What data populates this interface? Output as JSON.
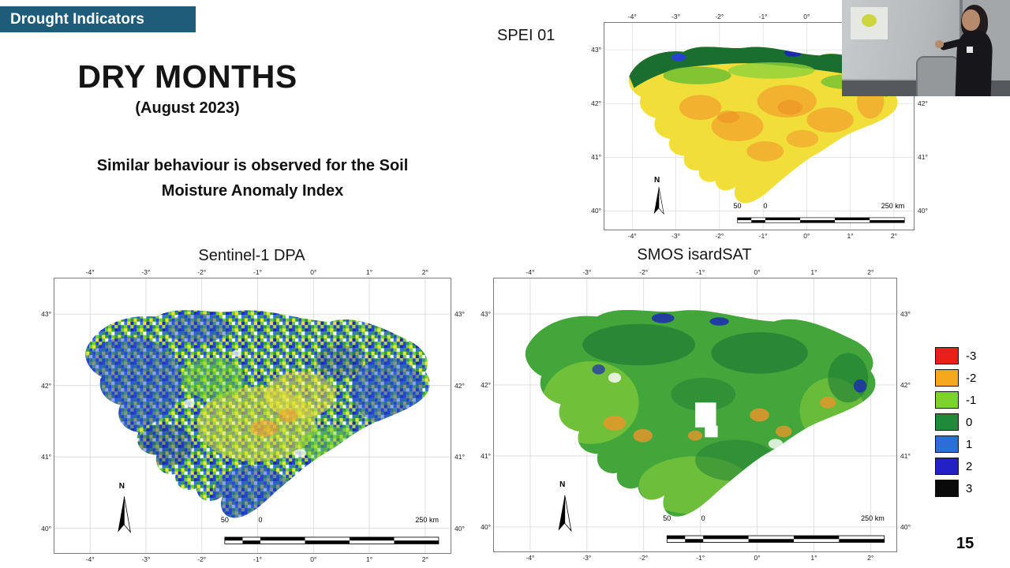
{
  "badge": {
    "label": "Drought Indicators"
  },
  "slide": {
    "title": "DRY MONTHS",
    "subtitle": "(August 2023)",
    "body_line1": "Similar behaviour is observed for the Soil",
    "body_line2": "Moisture Anomaly Index",
    "page_number": "15"
  },
  "maps": {
    "spei": {
      "label": "SPEI 01"
    },
    "sentinel": {
      "label": "Sentinel-1 DPA"
    },
    "smos": {
      "label": "SMOS isardSAT"
    }
  },
  "axes": {
    "x_ticks": [
      "-4°",
      "-3°",
      "-2°",
      "-1°",
      "0°",
      "1°",
      "2°"
    ],
    "y_ticks": [
      "43°",
      "42°",
      "41°",
      "40°"
    ]
  },
  "map_annotations": {
    "north_label": "N",
    "scale_left_label": "50",
    "scale_zero_label": "0",
    "scale_right_label": "250 km"
  },
  "legend": {
    "items": [
      {
        "value": "-3",
        "color": "#ea1f1c"
      },
      {
        "value": "-2",
        "color": "#f5a71d"
      },
      {
        "value": "-1",
        "color": "#7cd32c"
      },
      {
        "value": "0",
        "color": "#218a38"
      },
      {
        "value": "1",
        "color": "#2b6fd6"
      },
      {
        "value": "2",
        "color": "#2321c6"
      },
      {
        "value": "3",
        "color": "#0a0a0a"
      }
    ]
  },
  "colors": {
    "badge_bg": "#1e5c7a"
  }
}
